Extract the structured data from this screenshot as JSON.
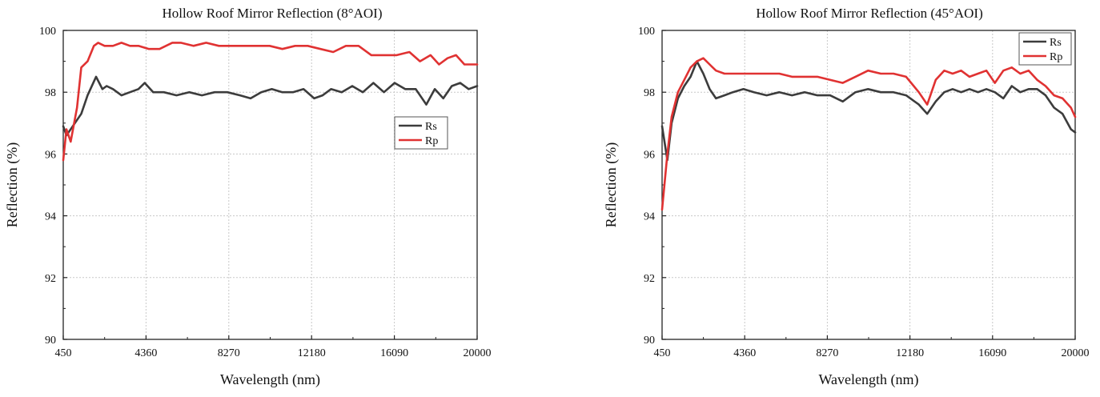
{
  "chart_data": [
    {
      "type": "line",
      "title": "Hollow Roof Mirror Reflection (8°AOI)",
      "xlabel": "Wavelength (nm)",
      "ylabel": "Reflection (%)",
      "xlim": [
        450,
        20000
      ],
      "ylim": [
        90,
        100
      ],
      "x_ticks": [
        "450",
        "4360",
        "8270",
        "12180",
        "16090",
        "20000"
      ],
      "y_ticks": [
        "90",
        "92",
        "94",
        "96",
        "98",
        "100"
      ],
      "grid": true,
      "legend_position": "middle-right",
      "series": [
        {
          "name": "Rs",
          "color": "#3c3c3c",
          "x": [
            450,
            600,
            900,
            1300,
            1600,
            2000,
            2300,
            2500,
            2800,
            3200,
            3600,
            4000,
            4300,
            4700,
            5200,
            5800,
            6400,
            7000,
            7600,
            8200,
            8800,
            9300,
            9800,
            10300,
            10800,
            11300,
            11800,
            12300,
            12700,
            13100,
            13600,
            14100,
            14600,
            15100,
            15600,
            16100,
            16600,
            17100,
            17600,
            18000,
            18400,
            18800,
            19200,
            19600,
            20000
          ],
          "y": [
            96.9,
            96.6,
            96.9,
            97.3,
            97.9,
            98.5,
            98.1,
            98.2,
            98.1,
            97.9,
            98.0,
            98.1,
            98.3,
            98.0,
            98.0,
            97.9,
            98.0,
            97.9,
            98.0,
            98.0,
            97.9,
            97.8,
            98.0,
            98.1,
            98.0,
            98.0,
            98.1,
            97.8,
            97.9,
            98.1,
            98.0,
            98.2,
            98.0,
            98.3,
            98.0,
            98.3,
            98.1,
            98.1,
            97.6,
            98.1,
            97.8,
            98.2,
            98.3,
            98.1,
            98.2
          ]
        },
        {
          "name": "Rp",
          "color": "#e03232",
          "x": [
            450,
            600,
            800,
            1100,
            1300,
            1600,
            1900,
            2100,
            2400,
            2800,
            3200,
            3600,
            4000,
            4500,
            5000,
            5600,
            6000,
            6600,
            7200,
            7800,
            8400,
            9000,
            9600,
            10200,
            10800,
            11400,
            12000,
            12600,
            13200,
            13800,
            14400,
            15000,
            15600,
            16200,
            16800,
            17300,
            17800,
            18200,
            18600,
            19000,
            19400,
            19800,
            20000
          ],
          "y": [
            95.8,
            96.8,
            96.4,
            97.5,
            98.8,
            99.0,
            99.5,
            99.6,
            99.5,
            99.5,
            99.6,
            99.5,
            99.5,
            99.4,
            99.4,
            99.6,
            99.6,
            99.5,
            99.6,
            99.5,
            99.5,
            99.5,
            99.5,
            99.5,
            99.4,
            99.5,
            99.5,
            99.4,
            99.3,
            99.5,
            99.5,
            99.2,
            99.2,
            99.2,
            99.3,
            99.0,
            99.2,
            98.9,
            99.1,
            99.2,
            98.9,
            98.9,
            98.9
          ]
        }
      ]
    },
    {
      "type": "line",
      "title": "Hollow Roof Mirror Reflection (45°AOI)",
      "xlabel": "Wavelength (nm)",
      "ylabel": "Reflection (%)",
      "xlim": [
        450,
        20000
      ],
      "ylim": [
        90,
        100
      ],
      "x_ticks": [
        "450",
        "4360",
        "8270",
        "12180",
        "16090",
        "20000"
      ],
      "y_ticks": [
        "90",
        "92",
        "94",
        "96",
        "98",
        "100"
      ],
      "grid": true,
      "legend_position": "top-right",
      "series": [
        {
          "name": "Rs",
          "color": "#3c3c3c",
          "x": [
            450,
            700,
            900,
            1200,
            1500,
            1800,
            2100,
            2400,
            2700,
            3000,
            3400,
            3800,
            4300,
            4800,
            5400,
            6000,
            6600,
            7200,
            7800,
            8400,
            9000,
            9600,
            10200,
            10800,
            11400,
            12000,
            12600,
            13000,
            13400,
            13800,
            14200,
            14600,
            15000,
            15400,
            15800,
            16200,
            16600,
            17000,
            17400,
            17800,
            18200,
            18600,
            19000,
            19400,
            19800,
            20000
          ],
          "y": [
            96.9,
            95.8,
            97.0,
            97.8,
            98.2,
            98.5,
            99.0,
            98.6,
            98.1,
            97.8,
            97.9,
            98.0,
            98.1,
            98.0,
            97.9,
            98.0,
            97.9,
            98.0,
            97.9,
            97.9,
            97.7,
            98.0,
            98.1,
            98.0,
            98.0,
            97.9,
            97.6,
            97.3,
            97.7,
            98.0,
            98.1,
            98.0,
            98.1,
            98.0,
            98.1,
            98.0,
            97.8,
            98.2,
            98.0,
            98.1,
            98.1,
            97.9,
            97.5,
            97.3,
            96.8,
            96.7
          ]
        },
        {
          "name": "Rp",
          "color": "#e03232",
          "x": [
            450,
            700,
            900,
            1200,
            1500,
            1800,
            2100,
            2400,
            2700,
            3000,
            3400,
            3800,
            4300,
            4800,
            5400,
            6000,
            6600,
            7200,
            7800,
            8400,
            9000,
            9600,
            10200,
            10800,
            11400,
            12000,
            12600,
            13000,
            13400,
            13800,
            14200,
            14600,
            15000,
            15400,
            15800,
            16200,
            16600,
            17000,
            17400,
            17800,
            18200,
            18600,
            19000,
            19400,
            19800,
            20000
          ],
          "y": [
            94.2,
            96.0,
            97.2,
            98.0,
            98.4,
            98.8,
            99.0,
            99.1,
            98.9,
            98.7,
            98.6,
            98.6,
            98.6,
            98.6,
            98.6,
            98.6,
            98.5,
            98.5,
            98.5,
            98.4,
            98.3,
            98.5,
            98.7,
            98.6,
            98.6,
            98.5,
            98.0,
            97.6,
            98.4,
            98.7,
            98.6,
            98.7,
            98.5,
            98.6,
            98.7,
            98.3,
            98.7,
            98.8,
            98.6,
            98.7,
            98.4,
            98.2,
            97.9,
            97.8,
            97.5,
            97.2
          ]
        }
      ]
    }
  ]
}
